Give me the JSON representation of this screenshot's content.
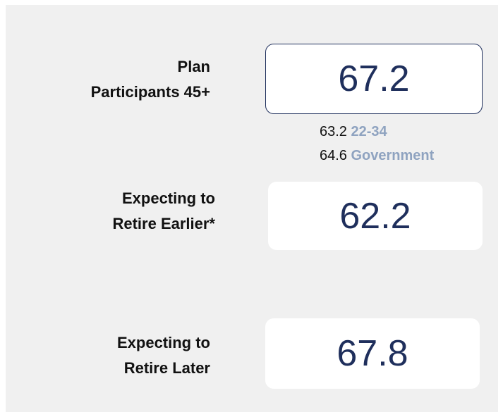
{
  "items": [
    {
      "label": [
        "Plan",
        "Participants 45+"
      ],
      "value": 67.2,
      "comparisons": [
        {
          "value": 63.2,
          "label": "22-34"
        },
        {
          "value": 64.6,
          "label": "Government"
        }
      ]
    },
    {
      "label": [
        "Expecting to",
        "Retire Earlier*"
      ],
      "value": 62.2
    },
    {
      "label": [
        "Expecting to",
        "Retire Later"
      ],
      "value": 67.8
    }
  ]
}
